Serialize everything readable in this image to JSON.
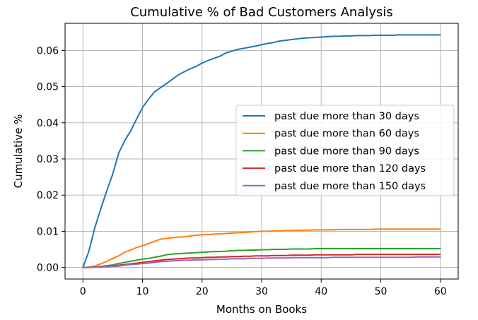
{
  "chart_data": {
    "type": "line",
    "title": "Cumulative % of Bad Customers Analysis",
    "xlabel": "Months on Books",
    "ylabel": "Cumulative %",
    "xlim": [
      -3,
      63
    ],
    "ylim": [
      -0.0032,
      0.0675
    ],
    "xticks": [
      0,
      10,
      20,
      30,
      40,
      50,
      60
    ],
    "yticks": [
      0.0,
      0.01,
      0.02,
      0.03,
      0.04,
      0.05,
      0.06
    ],
    "ytick_labels": [
      "0.00",
      "0.01",
      "0.02",
      "0.03",
      "0.04",
      "0.05",
      "0.06"
    ],
    "grid": true,
    "legend_position": "center-right",
    "x": [
      0,
      1,
      2,
      3,
      4,
      5,
      6,
      7,
      8,
      9,
      10,
      11,
      12,
      13,
      14,
      15,
      16,
      17,
      18,
      19,
      20,
      21,
      22,
      23,
      24,
      25,
      26,
      27,
      28,
      29,
      30,
      31,
      32,
      33,
      34,
      35,
      36,
      37,
      38,
      39,
      40,
      41,
      42,
      43,
      44,
      45,
      46,
      47,
      48,
      49,
      50,
      51,
      52,
      53,
      54,
      55,
      56,
      57,
      58,
      59,
      60
    ],
    "series": [
      {
        "name": "past due more than 30 days",
        "color": "#1f77b4",
        "values": [
          0.0,
          0.0045,
          0.011,
          0.0162,
          0.0212,
          0.0258,
          0.0316,
          0.035,
          0.0377,
          0.041,
          0.0442,
          0.0465,
          0.0485,
          0.0497,
          0.0508,
          0.052,
          0.0532,
          0.0541,
          0.0549,
          0.0556,
          0.0565,
          0.0572,
          0.0578,
          0.0584,
          0.0593,
          0.0598,
          0.0603,
          0.0606,
          0.0609,
          0.0612,
          0.0616,
          0.0619,
          0.0622,
          0.0626,
          0.0628,
          0.063,
          0.0632,
          0.0634,
          0.0635,
          0.0636,
          0.0637,
          0.0638,
          0.0639,
          0.0639,
          0.064,
          0.064,
          0.0641,
          0.0641,
          0.0641,
          0.0642,
          0.0642,
          0.0642,
          0.0642,
          0.0643,
          0.0643,
          0.0643,
          0.0643,
          0.0643,
          0.0643,
          0.0643,
          0.0643
        ]
      },
      {
        "name": "past due more than 60 days",
        "color": "#ff7f0e",
        "values": [
          0.0,
          0.0001,
          0.0004,
          0.001,
          0.0017,
          0.0025,
          0.0032,
          0.0042,
          0.0048,
          0.0055,
          0.006,
          0.0066,
          0.0072,
          0.0078,
          0.008,
          0.0082,
          0.0084,
          0.0085,
          0.0087,
          0.0089,
          0.009,
          0.0091,
          0.0092,
          0.0093,
          0.0094,
          0.0095,
          0.0096,
          0.0097,
          0.0098,
          0.0099,
          0.01,
          0.01,
          0.0101,
          0.0101,
          0.0102,
          0.0102,
          0.0103,
          0.0103,
          0.0103,
          0.0104,
          0.0104,
          0.0104,
          0.0104,
          0.0105,
          0.0105,
          0.0105,
          0.0105,
          0.0105,
          0.0105,
          0.0106,
          0.0106,
          0.0106,
          0.0106,
          0.0106,
          0.0106,
          0.0106,
          0.0106,
          0.0106,
          0.0106,
          0.0106,
          0.0106
        ]
      },
      {
        "name": "past due more than 90 days",
        "color": "#2ca02c",
        "values": [
          0.0,
          0.0,
          0.0001,
          0.0003,
          0.0005,
          0.0007,
          0.0011,
          0.0014,
          0.0017,
          0.002,
          0.0023,
          0.0025,
          0.0028,
          0.0031,
          0.0035,
          0.0037,
          0.0038,
          0.0039,
          0.004,
          0.0041,
          0.0042,
          0.0043,
          0.0044,
          0.0044,
          0.0045,
          0.0046,
          0.0047,
          0.0047,
          0.0048,
          0.0048,
          0.0049,
          0.0049,
          0.005,
          0.005,
          0.005,
          0.0051,
          0.0051,
          0.0051,
          0.0051,
          0.0052,
          0.0052,
          0.0052,
          0.0052,
          0.0052,
          0.0052,
          0.0052,
          0.0052,
          0.0052,
          0.0052,
          0.0052,
          0.0052,
          0.0052,
          0.0052,
          0.0052,
          0.0052,
          0.0052,
          0.0052,
          0.0052,
          0.0052,
          0.0052,
          0.0052
        ]
      },
      {
        "name": "past due more than 120 days",
        "color": "#d62728",
        "values": [
          0.0,
          0.0,
          0.0001,
          0.0002,
          0.0003,
          0.0004,
          0.0006,
          0.0008,
          0.001,
          0.0012,
          0.0014,
          0.0016,
          0.0018,
          0.002,
          0.0022,
          0.0023,
          0.0024,
          0.0025,
          0.0026,
          0.0026,
          0.0027,
          0.0028,
          0.0028,
          0.0029,
          0.0029,
          0.003,
          0.003,
          0.0031,
          0.0031,
          0.0032,
          0.0032,
          0.0032,
          0.0033,
          0.0033,
          0.0033,
          0.0034,
          0.0034,
          0.0034,
          0.0034,
          0.0035,
          0.0035,
          0.0035,
          0.0035,
          0.0035,
          0.0035,
          0.0035,
          0.0036,
          0.0036,
          0.0036,
          0.0036,
          0.0036,
          0.0036,
          0.0036,
          0.0036,
          0.0036,
          0.0036,
          0.0036,
          0.0036,
          0.0036,
          0.0036,
          0.0036
        ]
      },
      {
        "name": "past due more than 150 days",
        "color": "#9467bd",
        "values": [
          0.0,
          0.0,
          0.0001,
          0.0001,
          0.0002,
          0.0003,
          0.0004,
          0.0006,
          0.0008,
          0.0009,
          0.0011,
          0.0012,
          0.0014,
          0.0016,
          0.0017,
          0.0018,
          0.0019,
          0.002,
          0.002,
          0.0021,
          0.0021,
          0.0022,
          0.0022,
          0.0023,
          0.0023,
          0.0024,
          0.0024,
          0.0024,
          0.0025,
          0.0025,
          0.0025,
          0.0026,
          0.0026,
          0.0026,
          0.0026,
          0.0027,
          0.0027,
          0.0027,
          0.0027,
          0.0027,
          0.0027,
          0.0027,
          0.0028,
          0.0028,
          0.0028,
          0.0028,
          0.0028,
          0.0028,
          0.0028,
          0.0028,
          0.0028,
          0.0028,
          0.0028,
          0.0028,
          0.0028,
          0.0028,
          0.0029,
          0.0029,
          0.0029,
          0.0029,
          0.0029
        ]
      }
    ]
  }
}
